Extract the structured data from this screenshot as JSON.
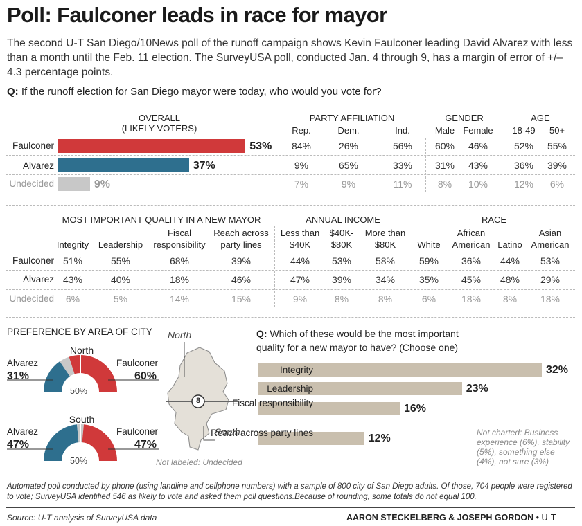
{
  "title": "Poll: Faulconer leads in race for mayor",
  "subtitle": "The second U-T San Diego/10News poll of the runoff campaign shows Kevin Faulconer leading David Alvarez with less than a month until the Feb. 11 election. The SurveyUSA poll, conducted Jan. 4 through 9, has a margin of error of +/– 4.3 percentage points.",
  "question1_prefix": "Q:",
  "question1": "If the runoff election for San Diego mayor were today, who would you vote for?",
  "overall": {
    "header_line1": "OVERALL",
    "header_line2": "(LIKELY VOTERS)",
    "rows": [
      {
        "label": "Faulconer",
        "value": 53,
        "display": "53%",
        "color": "#d0393a"
      },
      {
        "label": "Alvarez",
        "value": 37,
        "display": "37%",
        "color": "#2e6f8e"
      },
      {
        "label": "Undecided",
        "value": 9,
        "display": "9%",
        "color": "#c8c8c8"
      }
    ]
  },
  "party": {
    "header": "PARTY AFFILIATION",
    "cols": [
      "Rep.",
      "Dem.",
      "Ind."
    ],
    "rows": [
      [
        "84%",
        "26%",
        "56%"
      ],
      [
        "9%",
        "65%",
        "33%"
      ],
      [
        "7%",
        "9%",
        "11%"
      ]
    ]
  },
  "gender": {
    "header": "GENDER",
    "cols": [
      "Male",
      "Female"
    ],
    "rows": [
      [
        "60%",
        "46%"
      ],
      [
        "31%",
        "43%"
      ],
      [
        "8%",
        "10%"
      ]
    ]
  },
  "age": {
    "header": "AGE",
    "cols": [
      "18-49",
      "50+"
    ],
    "rows": [
      [
        "52%",
        "55%"
      ],
      [
        "36%",
        "39%"
      ],
      [
        "12%",
        "6%"
      ]
    ]
  },
  "table2": {
    "row_labels": [
      "Faulconer",
      "Alvarez",
      "Undecided"
    ],
    "quality": {
      "header": "MOST IMPORTANT QUALITY IN A NEW MAYOR",
      "cols": [
        [
          "",
          "Integrity"
        ],
        [
          "",
          "Leadership"
        ],
        [
          "Fiscal",
          "responsibility"
        ],
        [
          "Reach across",
          "party lines"
        ]
      ],
      "rows": [
        [
          "51%",
          "55%",
          "68%",
          "39%"
        ],
        [
          "43%",
          "40%",
          "18%",
          "46%"
        ],
        [
          "6%",
          "5%",
          "14%",
          "15%"
        ]
      ]
    },
    "income": {
      "header": "ANNUAL INCOME",
      "cols": [
        [
          "Less than",
          "$40K"
        ],
        [
          "$40K-",
          "$80K"
        ],
        [
          "More than",
          "$80K"
        ]
      ],
      "rows": [
        [
          "44%",
          "53%",
          "58%"
        ],
        [
          "47%",
          "39%",
          "34%"
        ],
        [
          "9%",
          "8%",
          "8%"
        ]
      ]
    },
    "race": {
      "header": "RACE",
      "cols": [
        [
          "",
          "White"
        ],
        [
          "African",
          "American"
        ],
        [
          "",
          "Latino"
        ],
        [
          "Asian",
          "American"
        ]
      ],
      "rows": [
        [
          "59%",
          "36%",
          "44%",
          "53%"
        ],
        [
          "35%",
          "45%",
          "48%",
          "29%"
        ],
        [
          "6%",
          "18%",
          "8%",
          "18%"
        ]
      ]
    }
  },
  "area": {
    "header": "PREFERENCE BY AREA OF CITY",
    "north": {
      "label": "North",
      "alvarez": 31,
      "faulconer": 60,
      "undecided": 9,
      "alvarez_label": "Alvarez",
      "alvarez_pct": "31%",
      "faulconer_label": "Faulconer",
      "faulconer_pct": "60%",
      "mid": "50%"
    },
    "south": {
      "label": "South",
      "alvarez": 47,
      "faulconer": 47,
      "undecided": 6,
      "alvarez_label": "Alvarez",
      "alvarez_pct": "47%",
      "faulconer_label": "Faulconer",
      "faulconer_pct": "47%",
      "mid": "50%"
    },
    "map_north": "North",
    "map_south": "South",
    "highway": "8",
    "map_note": "Not labeled: Undecided"
  },
  "question2_prefix": "Q:",
  "question2_line1": "Which of these would be the most important",
  "question2_line2": "quality for a new mayor to have? (Choose one)",
  "not_charted": "Not charted: Business experience (6%), stability (5%), something else (4%), not sure (3%)",
  "footnote": "Automated poll conducted by phone (using landline and cellphone numbers) with a sample of 800 city of San Diego adults. Of those, 704 people were registered to vote; SurveyUSA identified 546 as likely to vote and asked them poll questions.Because of rounding, some totals do not equal 100.",
  "source": "Source: U-T analysis of SurveyUSA data",
  "credit": "AARON STECKELBERG & JOSEPH GORDON",
  "credit_suffix": "• U-T",
  "colors": {
    "faulconer": "#d0393a",
    "alvarez": "#2e6f8e",
    "undecided": "#c8c8c8",
    "quality_bar": "#c9bfae"
  },
  "chart_data": [
    {
      "type": "bar",
      "categories": [
        "Faulconer",
        "Alvarez",
        "Undecided"
      ],
      "values": [
        53,
        37,
        9
      ],
      "title": "OVERALL (LIKELY VOTERS)",
      "xlim": [
        0,
        100
      ]
    },
    {
      "type": "table",
      "title": "PARTY AFFILIATION / GENDER / AGE",
      "columns": [
        "Rep.",
        "Dem.",
        "Ind.",
        "Male",
        "Female",
        "18-49",
        "50+"
      ],
      "rows": [
        {
          "name": "Faulconer",
          "values": [
            84,
            26,
            56,
            60,
            46,
            52,
            55
          ]
        },
        {
          "name": "Alvarez",
          "values": [
            9,
            65,
            33,
            31,
            43,
            36,
            39
          ]
        },
        {
          "name": "Undecided",
          "values": [
            7,
            9,
            11,
            8,
            10,
            12,
            6
          ]
        }
      ]
    },
    {
      "type": "table",
      "title": "MOST IMPORTANT QUALITY IN A NEW MAYOR / ANNUAL INCOME / RACE",
      "columns": [
        "Integrity",
        "Leadership",
        "Fiscal responsibility",
        "Reach across party lines",
        "Less than $40K",
        "$40K-$80K",
        "More than $80K",
        "White",
        "African American",
        "Latino",
        "Asian American"
      ],
      "rows": [
        {
          "name": "Faulconer",
          "values": [
            51,
            55,
            68,
            39,
            44,
            53,
            58,
            59,
            36,
            44,
            53
          ]
        },
        {
          "name": "Alvarez",
          "values": [
            43,
            40,
            18,
            46,
            47,
            39,
            34,
            35,
            45,
            48,
            29
          ]
        },
        {
          "name": "Undecided",
          "values": [
            6,
            5,
            14,
            15,
            9,
            8,
            8,
            6,
            18,
            8,
            18
          ]
        }
      ]
    },
    {
      "type": "pie",
      "title": "PREFERENCE BY AREA OF CITY",
      "categories": [
        "North",
        "South"
      ],
      "series": [
        {
          "name": "Alvarez",
          "values": [
            31,
            47
          ]
        },
        {
          "name": "Faulconer",
          "values": [
            60,
            47
          ]
        }
      ]
    },
    {
      "type": "bar",
      "title": "Which of these would be the most important quality for a new mayor to have? (Choose one)",
      "categories": [
        "Integrity",
        "Leadership",
        "Fiscal responsibility",
        "Reach across party lines"
      ],
      "values": [
        32,
        23,
        16,
        12
      ],
      "xlim": [
        0,
        35
      ]
    }
  ]
}
